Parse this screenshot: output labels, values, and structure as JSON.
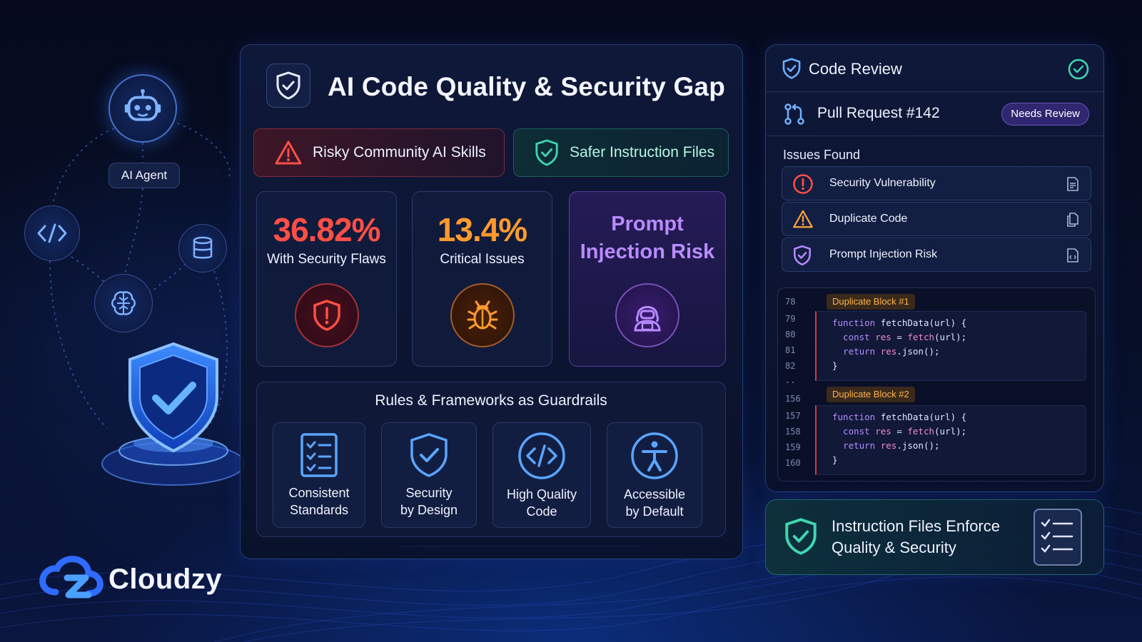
{
  "header": {
    "title": "AI Code Quality & Security Gap",
    "shield_icon": "shield-check-icon"
  },
  "tabs": {
    "risky": {
      "label": "Risky Community AI Skills",
      "icon": "warning-icon",
      "color": "#ff4f45"
    },
    "safer": {
      "label": "Safer Instruction Files",
      "icon": "shield-check-icon",
      "color": "#3fd6b0"
    }
  },
  "stats": [
    {
      "value": "36.82%",
      "label": "With Security Flaws",
      "icon": "shield-alert-icon",
      "color": "#ff4f45"
    },
    {
      "value": "13.4%",
      "label": "Critical Issues",
      "icon": "bug-icon",
      "color": "#ff9a2e"
    },
    {
      "title": "Prompt Injection Risk",
      "icon": "hacker-icon",
      "color": "#b98bff"
    }
  ],
  "guardrails": {
    "title": "Rules & Frameworks as Guardrails",
    "items": [
      {
        "label": "Consistent\nStandards",
        "icon": "checklist-icon"
      },
      {
        "label": "Security\nby Design",
        "icon": "shield-check-icon"
      },
      {
        "label": "High Quality\nCode",
        "icon": "code-icon"
      },
      {
        "label": "Accessible\nby Default",
        "icon": "accessibility-icon"
      }
    ]
  },
  "agent": {
    "label": "AI Agent",
    "icon": "robot-icon"
  },
  "review": {
    "title": "Code Review",
    "pull_request": "Pull Request #142",
    "status_badge": "Needs Review",
    "issues_label": "Issues Found",
    "issues": [
      {
        "label": "Security Vulnerability",
        "icon": "alert-circle-icon",
        "color": "#ff4f45"
      },
      {
        "label": "Duplicate Code",
        "icon": "warning-icon",
        "color": "#ffa63a"
      },
      {
        "label": "Prompt Injection Risk",
        "icon": "shield-check-icon",
        "color": "#b98bff"
      }
    ],
    "code": {
      "blocks": [
        {
          "label": "Duplicate Block #1",
          "first_line_number": "78",
          "line_numbers": [
            "79",
            "80",
            "81",
            "82"
          ]
        },
        {
          "label": "Duplicate Block #2",
          "first_line_number": "156",
          "line_numbers": [
            "157",
            "158",
            "159",
            "160"
          ]
        }
      ],
      "ellipsis": "..",
      "lines": {
        "l1_kw": "function",
        "l1_rest": " fetchData(url) {",
        "l2_kw": "  const",
        "l2_var": " res",
        "l2_eq": " = ",
        "l2_fn": "fetch",
        "l2_rest": "(url);",
        "l3_kw": "  return",
        "l3_var": " res",
        "l3_rest": ".json();",
        "l4": "}"
      }
    }
  },
  "enforce": {
    "text": "Instruction Files Enforce\nQuality & Security"
  },
  "brand": {
    "name": "Cloudzy",
    "color": "#2f6bff"
  }
}
